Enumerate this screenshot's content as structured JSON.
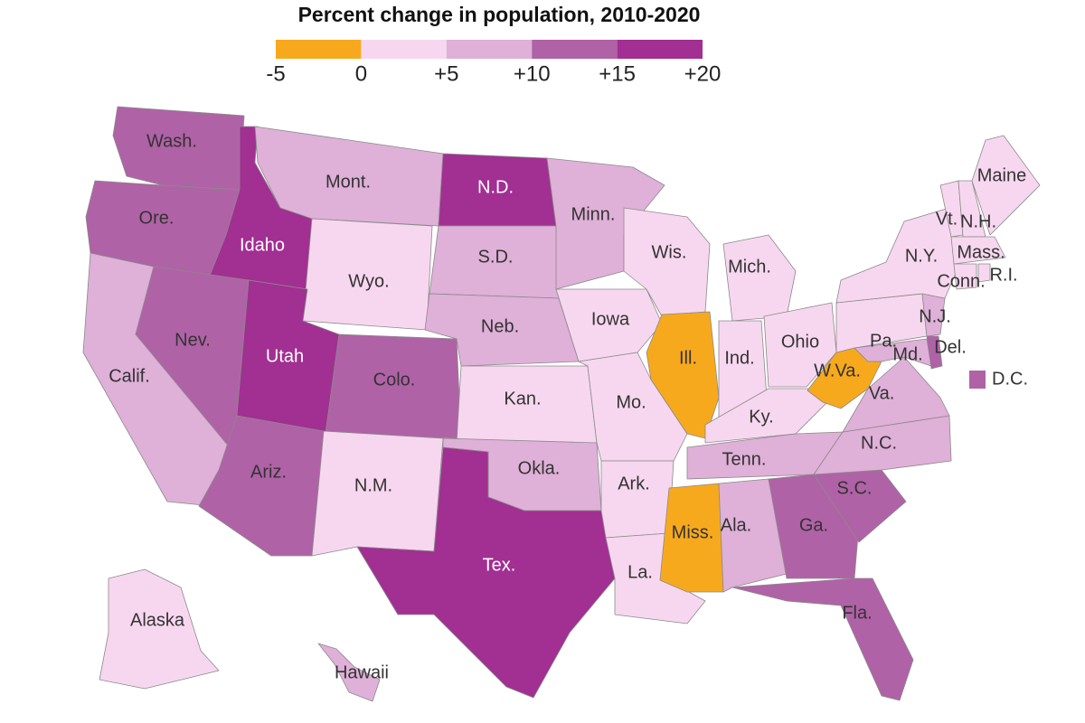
{
  "title": "Percent change in population, 2010-2020",
  "legend": {
    "ticks": [
      -5,
      0,
      {
        "value": 5,
        "label": "+5"
      },
      {
        "value": 10,
        "label": "+10"
      },
      {
        "value": 15,
        "label": "+15"
      },
      {
        "value": 20,
        "label": "+20"
      }
    ],
    "colors": [
      "#f7a91d",
      "#f7d7ef",
      "#dfb0d8",
      "#b062a6",
      "#a22f92"
    ]
  },
  "states": [
    {
      "label": "Wash.",
      "color": "#b062a6"
    },
    {
      "label": "Ore.",
      "color": "#b062a6"
    },
    {
      "label": "Idaho",
      "color": "#a22f92"
    },
    {
      "label": "Mont.",
      "color": "#dfb0d8"
    },
    {
      "label": "Wyo.",
      "color": "#f7d7ef"
    },
    {
      "label": "N.D.",
      "color": "#a22f92"
    },
    {
      "label": "S.D.",
      "color": "#dfb0d8"
    },
    {
      "label": "Neb.",
      "color": "#dfb0d8"
    },
    {
      "label": "Calif.",
      "color": "#dfb0d8"
    },
    {
      "label": "Nev.",
      "color": "#b062a6"
    },
    {
      "label": "Utah",
      "color": "#a22f92"
    },
    {
      "label": "Colo.",
      "color": "#b062a6"
    },
    {
      "label": "Ariz.",
      "color": "#b062a6"
    },
    {
      "label": "N.M.",
      "color": "#f7d7ef"
    },
    {
      "label": "Kan.",
      "color": "#f7d7ef"
    },
    {
      "label": "Okla.",
      "color": "#dfb0d8"
    },
    {
      "label": "Tex.",
      "color": "#a22f92"
    },
    {
      "label": "Minn.",
      "color": "#dfb0d8"
    },
    {
      "label": "Iowa",
      "color": "#f7d7ef"
    },
    {
      "label": "Mo.",
      "color": "#f7d7ef"
    },
    {
      "label": "Ark.",
      "color": "#f7d7ef"
    },
    {
      "label": "La.",
      "color": "#f7d7ef"
    },
    {
      "label": "Wis.",
      "color": "#f7d7ef"
    },
    {
      "label": "Ill.",
      "color": "#f7a91d"
    },
    {
      "label": "Mich.",
      "color": "#f7d7ef"
    },
    {
      "label": "Ind.",
      "color": "#f7d7ef"
    },
    {
      "label": "Ohio",
      "color": "#f7d7ef"
    },
    {
      "label": "Ky.",
      "color": "#f7d7ef"
    },
    {
      "label": "Tenn.",
      "color": "#dfb0d8"
    },
    {
      "label": "Miss.",
      "color": "#f7a91d"
    },
    {
      "label": "Ala.",
      "color": "#dfb0d8"
    },
    {
      "label": "Ga.",
      "color": "#b062a6"
    },
    {
      "label": "Fla.",
      "color": "#b062a6"
    },
    {
      "label": "S.C.",
      "color": "#b062a6"
    },
    {
      "label": "N.C.",
      "color": "#dfb0d8"
    },
    {
      "label": "Va.",
      "color": "#dfb0d8"
    },
    {
      "label": "W.Va.",
      "color": "#f7a91d"
    },
    {
      "label": "Md.",
      "color": "#dfb0d8"
    },
    {
      "label": "Del.",
      "color": "#b062a6"
    },
    {
      "label": "Pa.",
      "color": "#f7d7ef"
    },
    {
      "label": "N.J.",
      "color": "#dfb0d8"
    },
    {
      "label": "N.Y.",
      "color": "#f7d7ef"
    },
    {
      "label": "Vt.",
      "color": "#f7d7ef"
    },
    {
      "label": "N.H.",
      "color": "#f7d7ef"
    },
    {
      "label": "Maine",
      "color": "#f7d7ef"
    },
    {
      "label": "Mass.",
      "color": "#f7d7ef"
    },
    {
      "label": "Conn.",
      "color": "#f7d7ef"
    },
    {
      "label": "R.I.",
      "color": "#f7d7ef"
    },
    {
      "label": "Alaska",
      "color": "#f7d7ef"
    },
    {
      "label": "Hawaii",
      "color": "#dfb0d8"
    },
    {
      "label": "D.C.",
      "color": "#b062a6"
    }
  ]
}
